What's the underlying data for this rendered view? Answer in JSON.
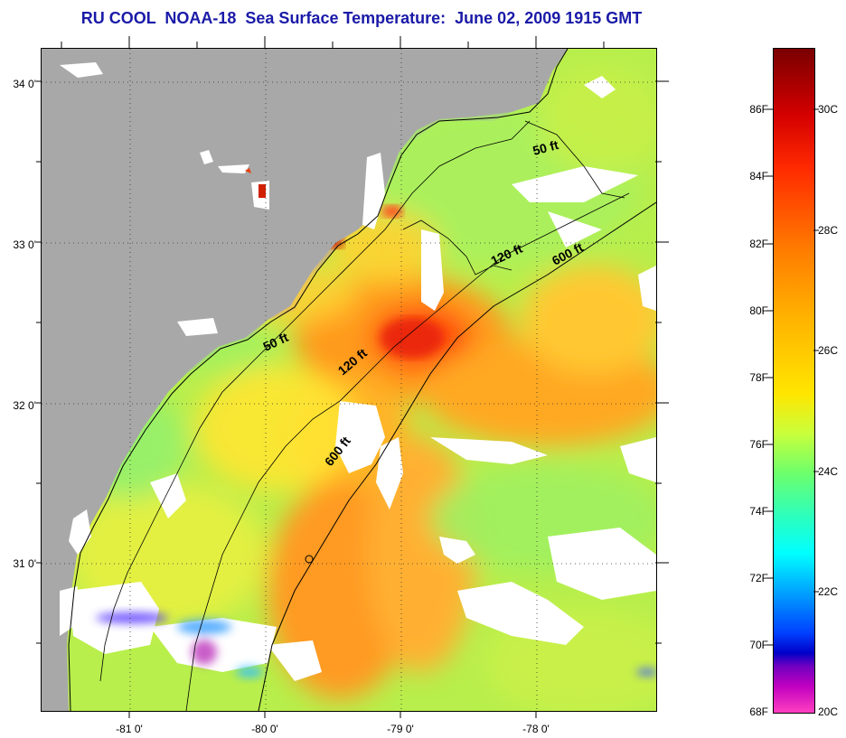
{
  "title": "RU COOL  NOAA-18  Sea Surface Temperature:  June 02, 2009 1915 GMT",
  "map": {
    "lat_ticks": [
      "34 0'",
      "33 0'",
      "32 0'",
      "31 0'"
    ],
    "lon_ticks": [
      "-81 0'",
      "-80 0'",
      "-79 0'",
      "-78 0'"
    ],
    "isobaths": [
      {
        "label": "50 ft"
      },
      {
        "label": "50 ft"
      },
      {
        "label": "120 ft"
      },
      {
        "label": "120 ft"
      },
      {
        "label": "600 ft"
      },
      {
        "label": "600 ft"
      }
    ],
    "colors": {
      "land": "#a8a8a8",
      "cloud": "#ffffff",
      "sea_base": "#b8ef4c"
    }
  },
  "colorbar": {
    "fahrenheit": [
      "86F",
      "84F",
      "82F",
      "80F",
      "78F",
      "76F",
      "74F",
      "72F",
      "70F",
      "68F"
    ],
    "celsius": [
      "30C",
      "28C",
      "26C",
      "24C",
      "22C",
      "20C"
    ]
  }
}
